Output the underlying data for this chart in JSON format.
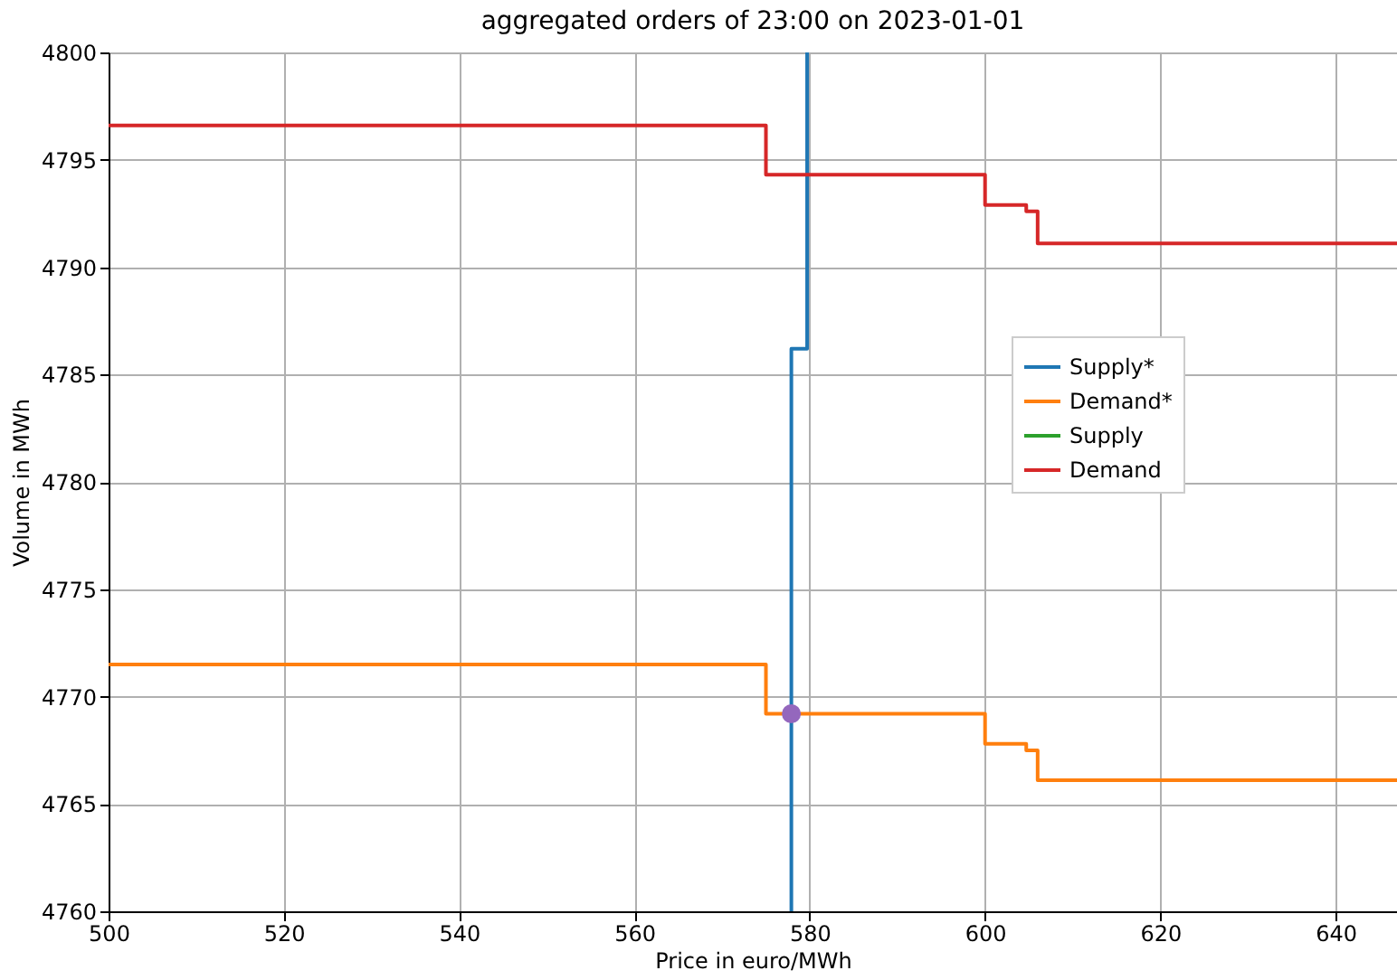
{
  "chart_data": {
    "type": "step",
    "title": "aggregated orders of 23:00 on 2023-01-01",
    "xlabel": "Price in euro/MWh",
    "ylabel": "Volume in MWh",
    "xlim": [
      500,
      647
    ],
    "ylim": [
      4760,
      4800
    ],
    "xticks": [
      500,
      520,
      540,
      560,
      580,
      600,
      620,
      640
    ],
    "yticks": [
      4760,
      4765,
      4770,
      4775,
      4780,
      4785,
      4790,
      4795,
      4800
    ],
    "grid": true,
    "legend": "right",
    "series": [
      {
        "name": "Supply*",
        "color": "#1f77b4",
        "x": [
          577.9,
          577.9,
          579.7
        ],
        "values": [
          4760,
          4786.2,
          4800
        ]
      },
      {
        "name": "Demand*",
        "color": "#ff7f0e",
        "x": [
          500,
          575,
          600,
          604.7,
          606,
          647
        ],
        "values": [
          4771.5,
          4769.2,
          4767.8,
          4767.5,
          4766.1,
          4766.1
        ]
      },
      {
        "name": "Supply",
        "color": "#2ca02c"
      },
      {
        "name": "Demand",
        "color": "#d62728",
        "x": [
          500,
          575,
          600,
          604.7,
          606,
          647
        ],
        "values": [
          4796.6,
          4794.3,
          4792.9,
          4792.6,
          4791.1,
          4791.1
        ]
      },
      {
        "type": "scatter",
        "color": "#9467bd",
        "x": [
          577.9
        ],
        "values": [
          4769.2
        ]
      }
    ]
  }
}
